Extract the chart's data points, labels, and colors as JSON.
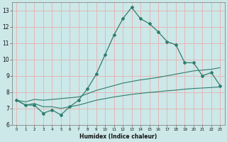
{
  "xlabel": "Humidex (Indice chaleur)",
  "bg_color": "#cce8e8",
  "grid_color": "#e8b0b0",
  "line_color": "#2e7d6e",
  "xlim": [
    -0.5,
    23.5
  ],
  "ylim": [
    6,
    13.5
  ],
  "yticks": [
    6,
    7,
    8,
    9,
    10,
    11,
    12,
    13
  ],
  "xticks": [
    0,
    1,
    2,
    3,
    4,
    5,
    6,
    7,
    8,
    9,
    10,
    11,
    12,
    13,
    14,
    15,
    16,
    17,
    18,
    19,
    20,
    21,
    22,
    23
  ],
  "series1_x": [
    0,
    1,
    2,
    3,
    4,
    5,
    6,
    7,
    8,
    9,
    10,
    11,
    12,
    13,
    14,
    15,
    16,
    17,
    18,
    19,
    20,
    21,
    22,
    23
  ],
  "series1_y": [
    7.5,
    7.2,
    7.2,
    6.7,
    6.9,
    6.6,
    7.1,
    7.5,
    8.2,
    9.1,
    10.3,
    11.5,
    12.5,
    13.2,
    12.5,
    12.2,
    11.7,
    11.1,
    10.9,
    9.8,
    9.8,
    9.0,
    9.2,
    8.4
  ],
  "series2_x": [
    0,
    1,
    2,
    3,
    4,
    5,
    6,
    7,
    8,
    9,
    10,
    11,
    12,
    13,
    14,
    15,
    16,
    17,
    18,
    19,
    20,
    21,
    22,
    23
  ],
  "series2_y": [
    7.5,
    7.4,
    7.55,
    7.5,
    7.55,
    7.6,
    7.65,
    7.7,
    7.9,
    8.1,
    8.25,
    8.4,
    8.55,
    8.65,
    8.75,
    8.82,
    8.9,
    9.0,
    9.1,
    9.2,
    9.3,
    9.35,
    9.4,
    9.5
  ],
  "series3_x": [
    0,
    1,
    2,
    3,
    4,
    5,
    6,
    7,
    8,
    9,
    10,
    11,
    12,
    13,
    14,
    15,
    16,
    17,
    18,
    19,
    20,
    21,
    22,
    23
  ],
  "series3_y": [
    7.5,
    7.2,
    7.3,
    7.1,
    7.1,
    7.0,
    7.1,
    7.2,
    7.35,
    7.5,
    7.6,
    7.7,
    7.78,
    7.86,
    7.92,
    7.98,
    8.02,
    8.08,
    8.12,
    8.18,
    8.22,
    8.25,
    8.28,
    8.32
  ]
}
